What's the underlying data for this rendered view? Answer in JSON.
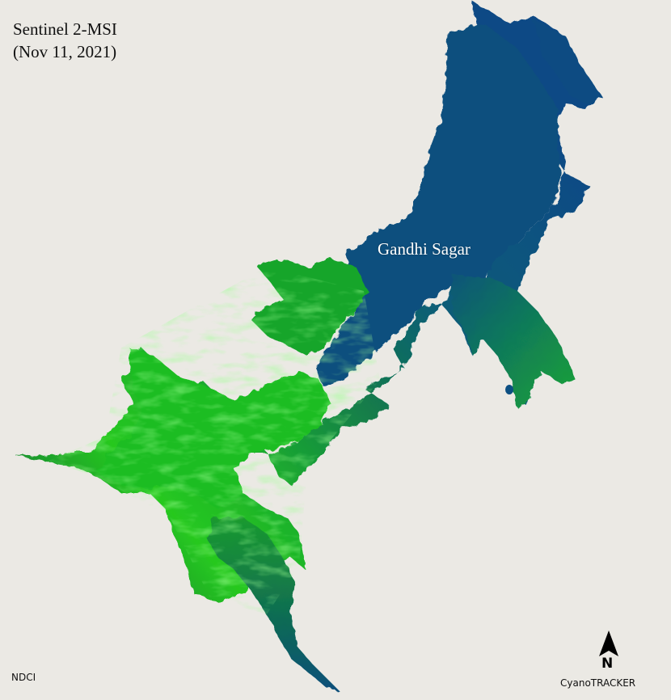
{
  "map": {
    "title_line1": "Sentinel 2-MSI",
    "title_line2": "(Nov 11, 2021)",
    "lake_name": "Gandhi Sagar",
    "index_label": "NDCI",
    "credit": "CyanoTRACKER",
    "north_label": "N",
    "background_color": "#ebe9e4",
    "low_index_color": "#0a4f86",
    "mid_index_color": "#108a3e",
    "high_index_color": "#2bd81a",
    "north_icon": "north-arrow-icon"
  }
}
